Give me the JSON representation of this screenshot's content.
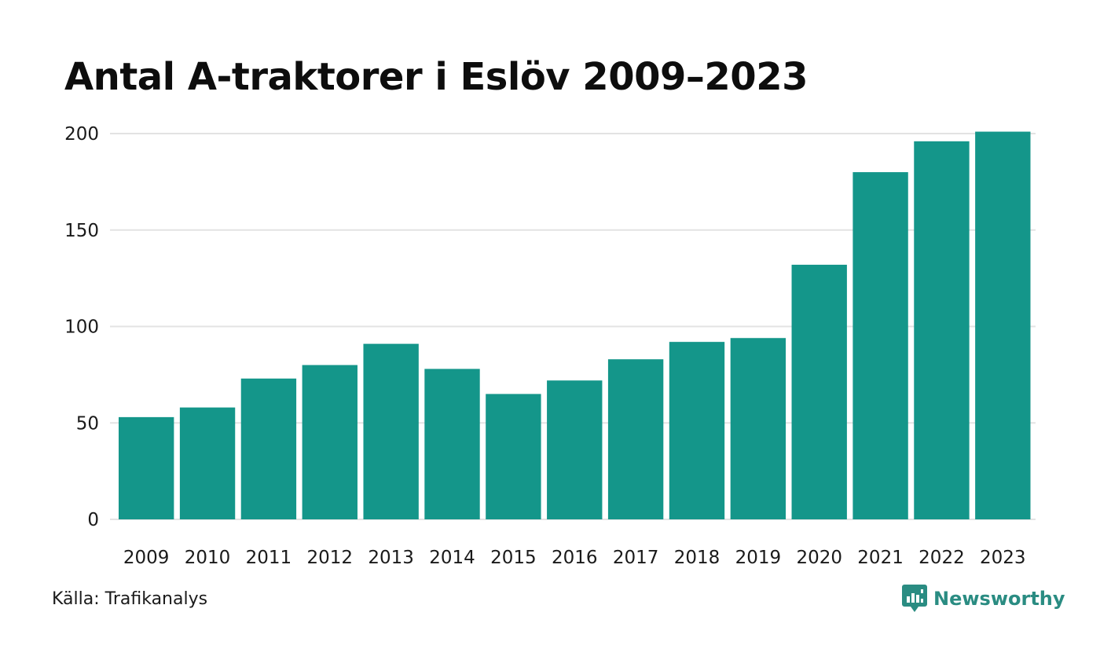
{
  "title": "Antal A-traktorer i Eslöv 2009–2023",
  "source": "Källa: Trafikanalys",
  "brand": {
    "name": "Newsworthy",
    "icon": "newsworthy-logo-icon",
    "color": "#2a8c82"
  },
  "colors": {
    "bar": "#14968a",
    "grid": "#e3e3e3",
    "text": "#1a1a1a"
  },
  "chart_data": {
    "type": "bar",
    "title": "Antal A-traktorer i Eslöv 2009–2023",
    "xlabel": "",
    "ylabel": "",
    "categories": [
      "2009",
      "2010",
      "2011",
      "2012",
      "2013",
      "2014",
      "2015",
      "2016",
      "2017",
      "2018",
      "2019",
      "2020",
      "2021",
      "2022",
      "2023"
    ],
    "values": [
      53,
      58,
      73,
      80,
      91,
      78,
      65,
      72,
      83,
      92,
      94,
      132,
      180,
      196,
      201
    ],
    "ylim": [
      0,
      200
    ],
    "yticks": [
      0,
      50,
      100,
      150,
      200
    ],
    "grid": true
  }
}
